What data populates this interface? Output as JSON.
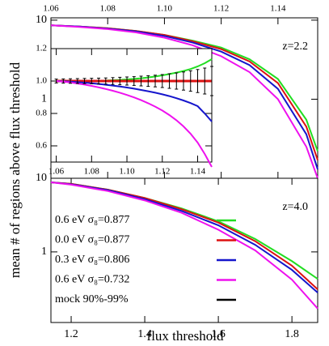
{
  "chart_data": [
    {
      "type": "line",
      "ylabel": "mean # of regions above flux threshold",
      "annotation": "z=2.2",
      "yscale": "log",
      "xtick_side": "top",
      "grid": false,
      "xlim": [
        1.06,
        1.154
      ],
      "ylim": [
        0.1,
        10.7
      ],
      "xticks": [
        1.06,
        1.08,
        {
          "value": 1.1,
          "label": "1.10"
        },
        1.12,
        1.14
      ],
      "yticks": [
        1,
        10
      ],
      "x": [
        1.06,
        1.07,
        1.08,
        1.09,
        1.1,
        1.11,
        1.12,
        1.13,
        1.14,
        1.15,
        1.154
      ],
      "series": [
        {
          "color": "#22dd22",
          "values": [
            8.6,
            8.3,
            7.9,
            7.3,
            6.5,
            5.5,
            4.5,
            3.2,
            1.8,
            0.55,
            0.22
          ]
        },
        {
          "color": "#dd1111",
          "values": [
            8.6,
            8.3,
            7.9,
            7.3,
            6.5,
            5.4,
            4.3,
            3.0,
            1.6,
            0.45,
            0.17
          ]
        },
        {
          "color": "#1515cc",
          "values": [
            8.6,
            8.3,
            7.8,
            7.2,
            6.3,
            5.2,
            4.0,
            2.7,
            1.35,
            0.36,
            0.13
          ]
        },
        {
          "color": "#ee11ee",
          "values": [
            8.6,
            8.2,
            7.7,
            7.0,
            6.0,
            4.8,
            3.5,
            2.2,
            1.0,
            0.25,
            0.1
          ]
        }
      ]
    },
    {
      "type": "line",
      "grid": false,
      "xlim": [
        1.057,
        1.148
      ],
      "ylim": [
        0.5,
        1.2
      ],
      "xticks": [
        1.06,
        1.08,
        {
          "value": 1.1,
          "label": "1.10"
        },
        1.12,
        1.14
      ],
      "yticks": [
        0.6,
        0.8,
        {
          "value": 1,
          "label": "1.0"
        },
        1.2
      ],
      "x": [
        1.06,
        1.064,
        1.068,
        1.072,
        1.076,
        1.08,
        1.084,
        1.088,
        1.092,
        1.096,
        1.1,
        1.104,
        1.108,
        1.112,
        1.116,
        1.12,
        1.124,
        1.128,
        1.132,
        1.136,
        1.14,
        1.144,
        1.148
      ],
      "series": [
        {
          "color": "#22dd22",
          "values": [
            1,
            1,
            1,
            1,
            1,
            1.001,
            1.002,
            1.003,
            1.005,
            1.007,
            1.01,
            1.013,
            1.017,
            1.022,
            1.028,
            1.035,
            1.043,
            1.052,
            1.062,
            1.074,
            1.09,
            1.11,
            1.135
          ]
        },
        {
          "color": "#dd1111",
          "values": [
            1,
            1,
            1,
            1,
            1,
            1,
            1,
            1,
            1,
            1,
            1,
            1,
            1,
            1,
            1,
            1,
            1,
            1,
            1,
            1,
            1,
            1,
            1
          ]
        },
        {
          "color": "#1515cc",
          "values": [
            1,
            0.998,
            0.996,
            0.993,
            0.99,
            0.986,
            0.982,
            0.977,
            0.972,
            0.966,
            0.96,
            0.953,
            0.945,
            0.937,
            0.928,
            0.918,
            0.907,
            0.894,
            0.88,
            0.864,
            0.845,
            0.8,
            0.75
          ]
        },
        {
          "color": "#ee11ee",
          "values": [
            1,
            0.996,
            0.991,
            0.985,
            0.978,
            0.97,
            0.961,
            0.951,
            0.94,
            0.928,
            0.914,
            0.899,
            0.882,
            0.863,
            0.842,
            0.818,
            0.79,
            0.758,
            0.72,
            0.675,
            0.62,
            0.55,
            0.47
          ]
        },
        {
          "name": "mock 90%-99%",
          "color": "#000000",
          "values": [
            1,
            1,
            1,
            1,
            1,
            1,
            1,
            1,
            1,
            1,
            1,
            1,
            1,
            1,
            1,
            1,
            1,
            1,
            1,
            1,
            1,
            1,
            1
          ],
          "errors": [
            0.012,
            0.013,
            0.014,
            0.015,
            0.016,
            0.017,
            0.018,
            0.019,
            0.021,
            0.023,
            0.025,
            0.027,
            0.03,
            0.033,
            0.036,
            0.04,
            0.045,
            0.05,
            0.056,
            0.063,
            0.071,
            0.08,
            0.09
          ]
        }
      ]
    },
    {
      "type": "line",
      "xlabel": "flux threshold",
      "annotation": "z=4.0",
      "yscale": "log",
      "xtick_side": "bottom",
      "grid": false,
      "legend": "left",
      "xlim": [
        1.145,
        1.87
      ],
      "ylim": [
        0.11,
        10
      ],
      "xticks": [
        1.2,
        1.4,
        1.6,
        1.8
      ],
      "yticks": [
        1,
        10
      ],
      "x": [
        1.145,
        1.2,
        1.3,
        1.4,
        1.5,
        1.6,
        1.7,
        1.8,
        1.87
      ],
      "series": [
        {
          "name": "0.6 eV σ₈=0.877",
          "color": "#22dd22",
          "values": [
            8.8,
            8.4,
            7.0,
            5.4,
            3.9,
            2.6,
            1.5,
            0.75,
            0.43
          ]
        },
        {
          "name": "0.0 eV σ₈=0.877",
          "color": "#dd1111",
          "values": [
            8.8,
            8.4,
            7.0,
            5.4,
            3.8,
            2.5,
            1.4,
            0.65,
            0.31
          ]
        },
        {
          "name": "0.3 eV σ₈=0.806",
          "color": "#1515cc",
          "values": [
            8.8,
            8.3,
            6.9,
            5.2,
            3.6,
            2.3,
            1.25,
            0.57,
            0.28
          ]
        },
        {
          "name": "0.6 eV σ₈=0.732",
          "color": "#ee11ee",
          "values": [
            8.8,
            8.2,
            6.7,
            5.0,
            3.4,
            2.0,
            1.05,
            0.42,
            0.17
          ]
        }
      ]
    }
  ]
}
